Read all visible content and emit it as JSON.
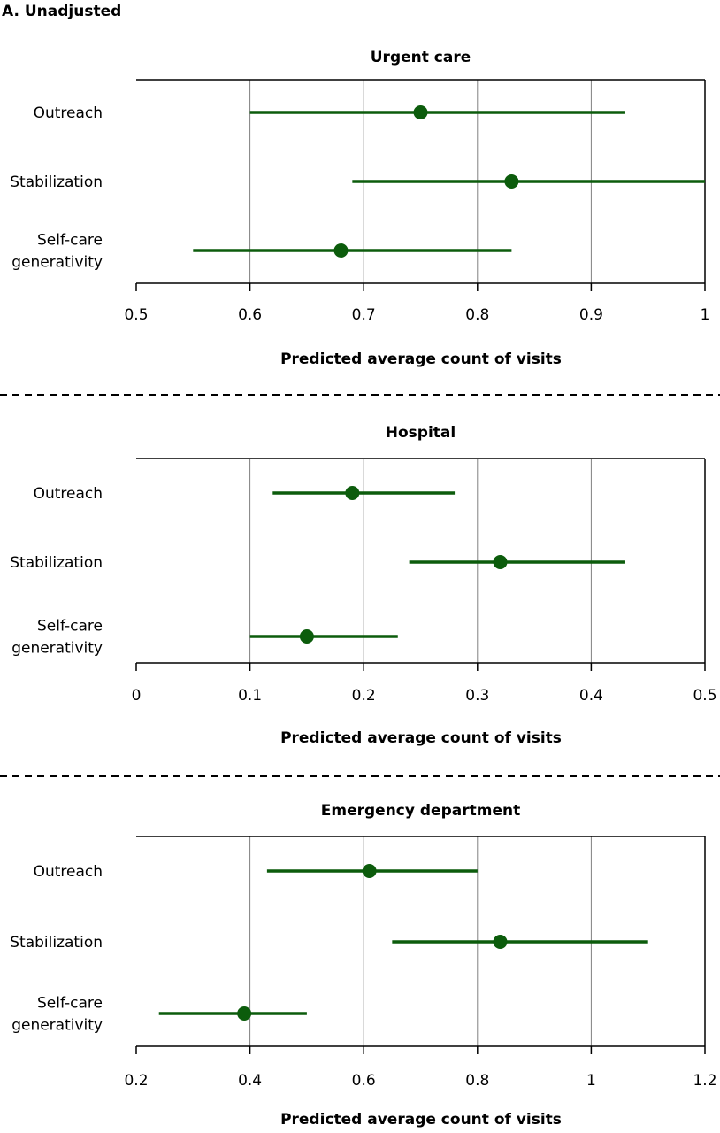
{
  "panel_label": "A. Unadjusted",
  "colors": {
    "series": "#0c5c0c",
    "grid": "#808080",
    "frame": "#000000",
    "separator": "#000000"
  },
  "chart_data": [
    {
      "type": "forest",
      "title": "Urgent care",
      "xlabel": "Predicted average count of visits",
      "xlim": [
        0.5,
        1.0
      ],
      "xticks": [
        0.5,
        0.6,
        0.7,
        0.8,
        0.9,
        1.0
      ],
      "xtick_labels": [
        "0.5",
        "0.6",
        "0.7",
        "0.8",
        "0.9",
        "1"
      ],
      "grid": "vertical",
      "categories": [
        [
          "Outreach"
        ],
        [
          "Stabilization"
        ],
        [
          "Self-care",
          "generativity"
        ]
      ],
      "estimates": [
        0.75,
        0.83,
        0.68
      ],
      "ci_low": [
        0.6,
        0.69,
        0.55
      ],
      "ci_high": [
        0.93,
        1.0,
        0.83
      ]
    },
    {
      "type": "forest",
      "title": "Hospital",
      "xlabel": "Predicted average count of visits",
      "xlim": [
        0.0,
        0.5
      ],
      "xticks": [
        0.0,
        0.1,
        0.2,
        0.3,
        0.4,
        0.5
      ],
      "xtick_labels": [
        "0",
        "0.1",
        "0.2",
        "0.3",
        "0.4",
        "0.5"
      ],
      "grid": "vertical",
      "categories": [
        [
          "Outreach"
        ],
        [
          "Stabilization"
        ],
        [
          "Self-care",
          "generativity"
        ]
      ],
      "estimates": [
        0.19,
        0.32,
        0.15
      ],
      "ci_low": [
        0.12,
        0.24,
        0.1
      ],
      "ci_high": [
        0.28,
        0.43,
        0.23
      ]
    },
    {
      "type": "forest",
      "title": "Emergency department",
      "xlabel": "Predicted average count of visits",
      "xlim": [
        0.2,
        1.2
      ],
      "xticks": [
        0.2,
        0.4,
        0.6,
        0.8,
        1.0,
        1.2
      ],
      "xtick_labels": [
        "0.2",
        "0.4",
        "0.6",
        "0.8",
        "1",
        "1.2"
      ],
      "grid": "vertical",
      "categories": [
        [
          "Outreach"
        ],
        [
          "Stabilization"
        ],
        [
          "Self-care",
          "generativity"
        ]
      ],
      "estimates": [
        0.61,
        0.84,
        0.39
      ],
      "ci_low": [
        0.43,
        0.65,
        0.24
      ],
      "ci_high": [
        0.8,
        1.1,
        0.5
      ]
    }
  ]
}
